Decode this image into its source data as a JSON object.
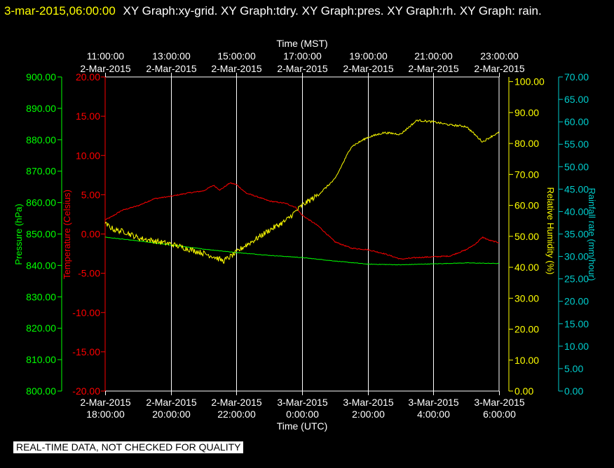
{
  "header": {
    "timestamp": "3-mar-2015,06:00:00",
    "title": "XY Graph:xy-grid.  XY Graph:tdry.  XY Graph:pres.  XY Graph:rh.  XY Graph: rain."
  },
  "disclaimer": "REAL-TIME DATA, NOT CHECKED FOR QUALITY",
  "colors": {
    "temperature": "#ff0000",
    "pressure": "#00ff00",
    "humidity": "#ffff00",
    "rain": "#00cccc",
    "grid": "#ffffff"
  },
  "chart_data": {
    "type": "line",
    "x_bottom": {
      "label": "Time (UTC)",
      "ticks": [
        {
          "date": "2-Mar-2015",
          "time": "18:00:00"
        },
        {
          "date": "2-Mar-2015",
          "time": "20:00:00"
        },
        {
          "date": "2-Mar-2015",
          "time": "22:00:00"
        },
        {
          "date": "3-Mar-2015",
          "time": "0:00:00"
        },
        {
          "date": "3-Mar-2015",
          "time": "2:00:00"
        },
        {
          "date": "3-Mar-2015",
          "time": "4:00:00"
        },
        {
          "date": "3-Mar-2015",
          "time": "6:00:00"
        }
      ]
    },
    "x_top": {
      "label": "Time (MST)",
      "ticks": [
        {
          "time": "11:00:00",
          "date": "2-Mar-2015"
        },
        {
          "time": "13:00:00",
          "date": "2-Mar-2015"
        },
        {
          "time": "15:00:00",
          "date": "2-Mar-2015"
        },
        {
          "time": "17:00:00",
          "date": "2-Mar-2015"
        },
        {
          "time": "19:00:00",
          "date": "2-Mar-2015"
        },
        {
          "time": "21:00:00",
          "date": "2-Mar-2015"
        },
        {
          "time": "23:00:00",
          "date": "2-Mar-2015"
        }
      ]
    },
    "x_range_hours_utc": [
      18,
      30
    ],
    "axes": {
      "pressure": {
        "label": "Pressure (hPa)",
        "range": [
          800,
          900
        ],
        "ticks": [
          "900.00",
          "890.00",
          "880.00",
          "870.00",
          "860.00",
          "850.00",
          "840.00",
          "830.00",
          "820.00",
          "810.00",
          "800.00"
        ]
      },
      "temperature": {
        "label": "Temperature (Celsius)",
        "range": [
          -20,
          20
        ],
        "ticks": [
          "20.00",
          "15.00",
          "10.00",
          "5.00",
          "0.00",
          "-5.00",
          "-10.00",
          "-15.00",
          "-20.00"
        ]
      },
      "humidity": {
        "label": "Relative Humidity (%)",
        "range": [
          0,
          101.5
        ],
        "ticks": [
          "100.00",
          "90.00",
          "80.00",
          "70.00",
          "60.00",
          "50.00",
          "40.00",
          "30.00",
          "20.00",
          "10.00",
          "0.00"
        ]
      },
      "rain": {
        "label": "Rainfall rate (mm/hour)",
        "range": [
          0,
          70
        ],
        "ticks": [
          "70.00",
          "65.00",
          "60.00",
          "55.00",
          "50.00",
          "45.00",
          "40.00",
          "35.00",
          "30.00",
          "25.00",
          "20.00",
          "15.00",
          "10.00",
          "5.00",
          "0.00"
        ]
      }
    },
    "series": [
      {
        "key": "temperature",
        "axis": "temperature",
        "x": [
          18.0,
          18.2,
          18.5,
          19.0,
          19.5,
          20.0,
          20.5,
          21.0,
          21.3,
          21.5,
          21.8,
          22.0,
          22.3,
          22.6,
          23.0,
          23.5,
          23.8,
          24.0,
          24.5,
          25.0,
          25.5,
          26.0,
          26.5,
          27.0,
          27.5,
          28.0,
          28.5,
          29.0,
          29.3,
          29.5,
          29.7,
          30.0
        ],
        "y": [
          1.8,
          2.2,
          3.0,
          3.6,
          4.5,
          4.8,
          5.2,
          5.5,
          6.2,
          5.6,
          6.5,
          6.3,
          5.2,
          4.8,
          4.2,
          3.9,
          3.4,
          2.4,
          1.0,
          -1.0,
          -1.8,
          -2.0,
          -2.5,
          -3.2,
          -3.0,
          -2.9,
          -2.8,
          -2.0,
          -1.2,
          -0.4,
          -0.8,
          -1.1
        ]
      },
      {
        "key": "pressure",
        "axis": "pressure",
        "x": [
          18,
          19,
          20,
          21,
          22,
          23,
          24,
          25,
          26,
          27,
          28,
          29,
          30
        ],
        "y": [
          849.0,
          847.8,
          846.5,
          845.2,
          844.1,
          843.2,
          842.5,
          841.4,
          840.4,
          840.2,
          840.5,
          840.8,
          840.6
        ]
      },
      {
        "key": "humidity",
        "axis": "humidity",
        "x": [
          18.0,
          18.3,
          18.6,
          19.0,
          19.5,
          20.0,
          20.5,
          21.0,
          21.3,
          21.6,
          21.9,
          22.2,
          22.5,
          23.0,
          23.5,
          24.0,
          24.5,
          25.0,
          25.5,
          26.0,
          26.5,
          27.0,
          27.5,
          28.0,
          28.5,
          29.0,
          29.5,
          29.8,
          30.0
        ],
        "y": [
          54.0,
          52.0,
          51.5,
          49.5,
          48.5,
          47.5,
          46.0,
          44.5,
          43.5,
          42.0,
          44.0,
          46.5,
          48.5,
          52.0,
          55.0,
          60.0,
          63.5,
          68.5,
          79.0,
          82.0,
          83.5,
          83.0,
          87.5,
          87.0,
          86.0,
          85.5,
          80.5,
          82.5,
          83.5
        ]
      },
      {
        "key": "rain",
        "axis": "rain",
        "x": [],
        "y": []
      }
    ],
    "grid": true
  }
}
